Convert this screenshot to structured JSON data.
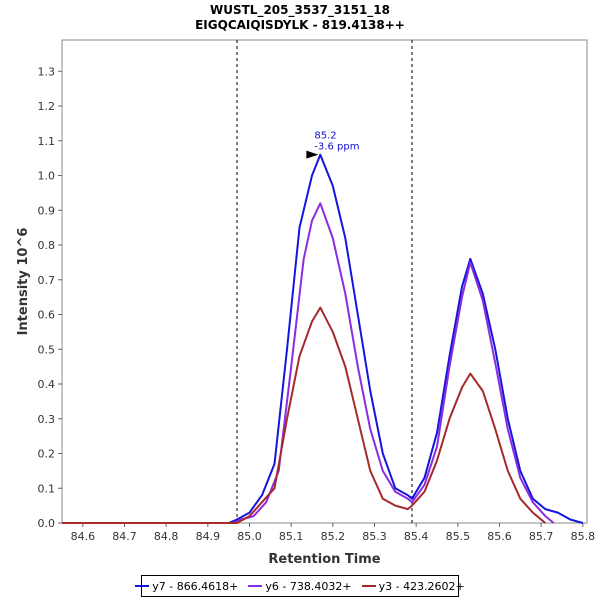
{
  "chart_data": {
    "type": "line",
    "title": "WUSTL_205_3537_3151_18",
    "subtitle": "EIGQCAIQISDYLK - 819.4138++",
    "xlabel": "Retention Time",
    "ylabel": "Intensity 10^6",
    "xlim": [
      84.55,
      85.81
    ],
    "ylim": [
      0,
      1.39
    ],
    "x_ticks": [
      "84.6",
      "84.7",
      "84.8",
      "84.9",
      "85.0",
      "85.1",
      "85.2",
      "85.3",
      "85.4",
      "85.5",
      "85.6",
      "85.7",
      "85.8"
    ],
    "y_ticks": [
      "0.0",
      "0.1",
      "0.2",
      "0.3",
      "0.4",
      "0.5",
      "0.6",
      "0.7",
      "0.8",
      "0.9",
      "1.0",
      "1.1",
      "1.2",
      "1.3"
    ],
    "grid": false,
    "legend_position": "bottom",
    "integration_bounds": [
      84.97,
      85.39
    ],
    "annotation": {
      "x": 85.17,
      "y": 1.06,
      "line1": "85.2",
      "line2": "-3.6 ppm"
    },
    "series": [
      {
        "name": "y7 - 866.4618+",
        "color": "#1515dc",
        "x": [
          84.55,
          84.95,
          84.97,
          85.0,
          85.03,
          85.06,
          85.09,
          85.12,
          85.15,
          85.17,
          85.2,
          85.23,
          85.26,
          85.29,
          85.32,
          85.35,
          85.38,
          85.39,
          85.42,
          85.45,
          85.48,
          85.51,
          85.53,
          85.56,
          85.59,
          85.62,
          85.65,
          85.68,
          85.71,
          85.74,
          85.77,
          85.8
        ],
        "y": [
          0.0,
          0.0,
          0.01,
          0.03,
          0.08,
          0.17,
          0.5,
          0.85,
          1.0,
          1.06,
          0.97,
          0.82,
          0.6,
          0.38,
          0.2,
          0.1,
          0.08,
          0.07,
          0.13,
          0.26,
          0.48,
          0.68,
          0.76,
          0.66,
          0.5,
          0.3,
          0.15,
          0.07,
          0.04,
          0.03,
          0.01,
          0.0
        ]
      },
      {
        "name": "y6 - 738.4032+",
        "color": "#8b2be2",
        "x": [
          84.55,
          84.96,
          84.98,
          85.01,
          85.04,
          85.07,
          85.1,
          85.13,
          85.15,
          85.17,
          85.2,
          85.23,
          85.26,
          85.29,
          85.32,
          85.35,
          85.38,
          85.39,
          85.42,
          85.45,
          85.48,
          85.51,
          85.53,
          85.56,
          85.59,
          85.62,
          85.65,
          85.68,
          85.71,
          85.73
        ],
        "y": [
          0.0,
          0.0,
          0.01,
          0.02,
          0.06,
          0.15,
          0.45,
          0.76,
          0.87,
          0.92,
          0.82,
          0.66,
          0.45,
          0.27,
          0.15,
          0.09,
          0.07,
          0.06,
          0.11,
          0.22,
          0.45,
          0.65,
          0.75,
          0.64,
          0.46,
          0.27,
          0.13,
          0.06,
          0.02,
          0.0
        ]
      },
      {
        "name": "y3 - 423.2602+",
        "color": "#a52a2a",
        "x": [
          84.55,
          84.97,
          85.0,
          85.03,
          85.06,
          85.09,
          85.12,
          85.15,
          85.17,
          85.2,
          85.23,
          85.26,
          85.29,
          85.32,
          85.35,
          85.38,
          85.39,
          85.42,
          85.45,
          85.48,
          85.51,
          85.53,
          85.56,
          85.59,
          85.62,
          85.65,
          85.68,
          85.71
        ],
        "y": [
          0.0,
          0.0,
          0.02,
          0.06,
          0.1,
          0.3,
          0.48,
          0.58,
          0.62,
          0.55,
          0.45,
          0.3,
          0.15,
          0.07,
          0.05,
          0.04,
          0.05,
          0.09,
          0.18,
          0.3,
          0.39,
          0.43,
          0.38,
          0.27,
          0.15,
          0.07,
          0.03,
          0.0
        ]
      }
    ]
  }
}
